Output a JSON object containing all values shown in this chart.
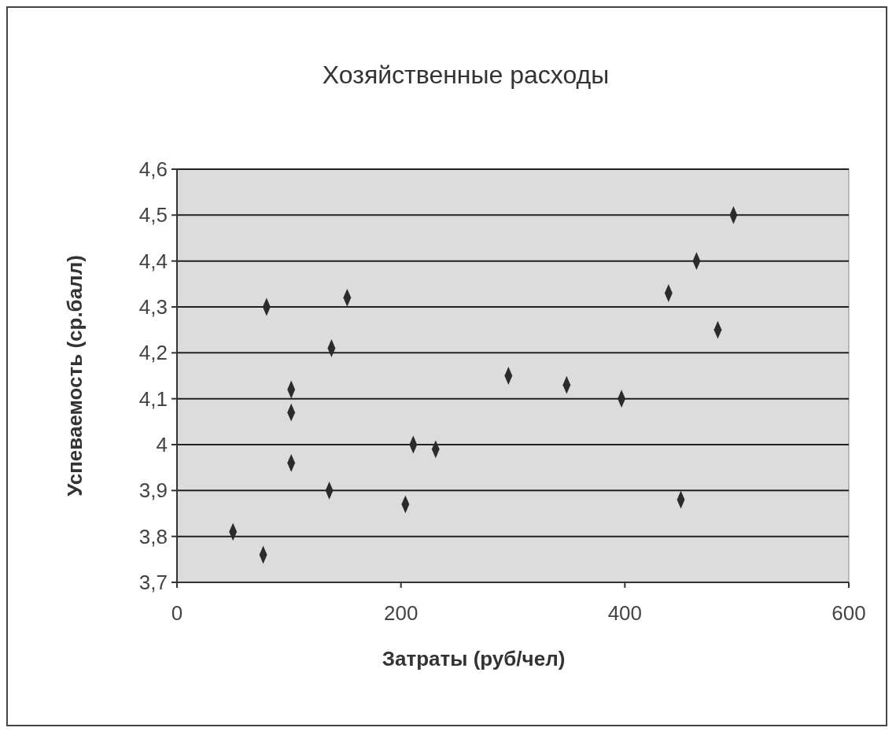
{
  "chart_data": {
    "type": "scatter",
    "title": "Хозяйственные расходы",
    "xlabel": "Затраты (руб/чел)",
    "ylabel": "Успеваемость (ср.балл)",
    "x": [
      50,
      77,
      80,
      102,
      102,
      102,
      136,
      138,
      152,
      204,
      211,
      231,
      296,
      348,
      397,
      439,
      450,
      464,
      483,
      497
    ],
    "values": [
      3.81,
      3.76,
      4.3,
      4.12,
      4.07,
      3.96,
      3.9,
      4.21,
      4.32,
      3.87,
      4.0,
      3.99,
      4.15,
      4.13,
      4.1,
      4.33,
      3.88,
      4.4,
      4.25,
      4.5
    ],
    "color": "#2b2b2b",
    "marker": "diamond",
    "xlim": [
      0,
      600
    ],
    "xticks": [
      0,
      200,
      400,
      600
    ],
    "ylim": [
      3.7,
      4.6
    ],
    "yticks": [
      {
        "value": 3.7,
        "label": "3,7"
      },
      {
        "value": 3.8,
        "label": "3,8"
      },
      {
        "value": 3.9,
        "label": "3,9"
      },
      {
        "value": 4,
        "label": "4"
      },
      {
        "value": 4.1,
        "label": "4,1"
      },
      {
        "value": 4.2,
        "label": "4,2"
      },
      {
        "value": 4.3,
        "label": "4,3"
      },
      {
        "value": 4.4,
        "label": "4,4"
      },
      {
        "value": 4.5,
        "label": "4,5"
      },
      {
        "value": 4.6,
        "label": "4,6"
      }
    ],
    "grid": "y"
  }
}
